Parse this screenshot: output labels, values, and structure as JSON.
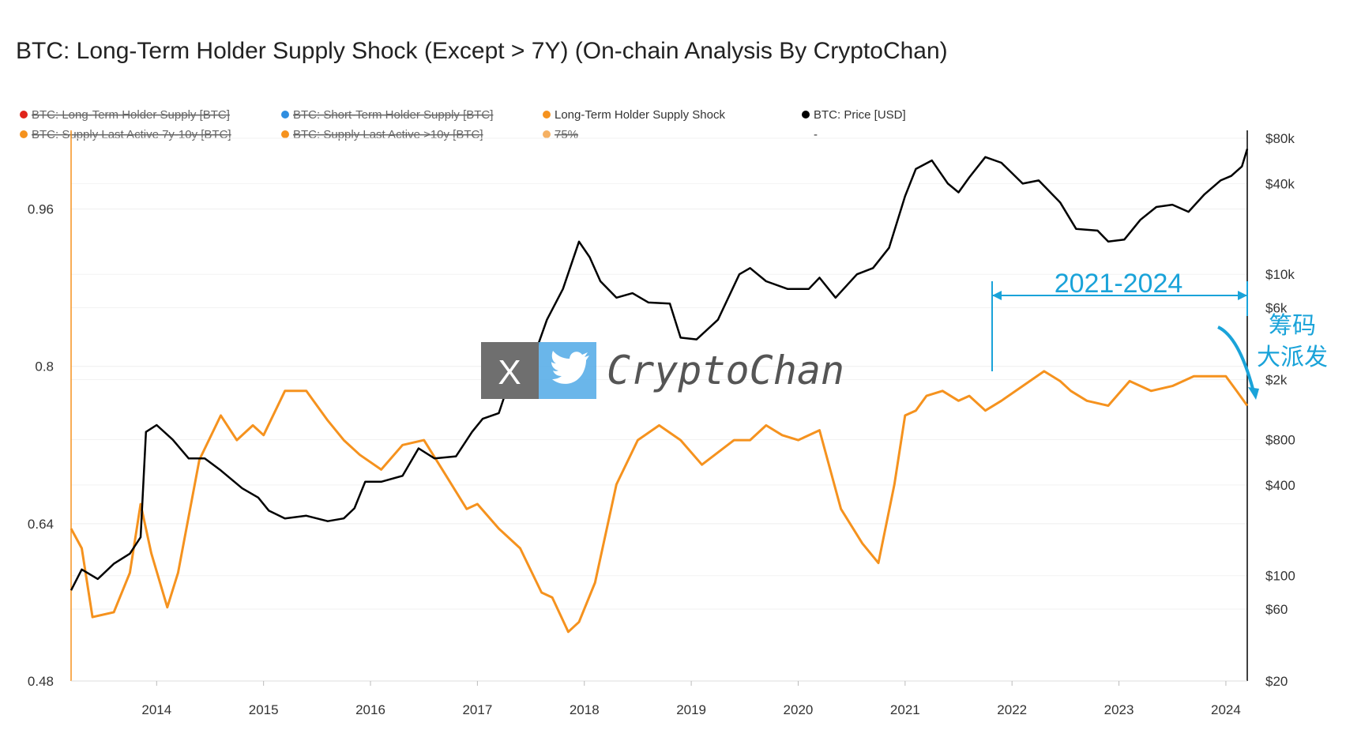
{
  "chart_data": {
    "type": "line",
    "title": "BTC: Long-Term Holder Supply Shock (Except > 7Y) (On-chain Analysis By CryptoChan)",
    "legend": [
      {
        "label": "BTC: Long-Term Holder Supply [BTC]",
        "color": "#e0241b",
        "disabled": true
      },
      {
        "label": "BTC: Short-Term Holder Supply [BTC]",
        "color": "#2f8ee0",
        "disabled": true
      },
      {
        "label": "Long-Term Holder Supply Shock",
        "color": "#f5921e",
        "disabled": false
      },
      {
        "label": "BTC: Price [USD]",
        "color": "#000000",
        "disabled": false
      },
      {
        "label": "BTC: Supply Last Active 7y-10y [BTC]",
        "color": "#f5921e",
        "disabled": true
      },
      {
        "label": "BTC: Supply Last Active >10y [BTC]",
        "color": "#f5921e",
        "disabled": true
      },
      {
        "label": "75%",
        "color": "#f5b062",
        "disabled": true
      },
      {
        "label": "-",
        "color": null,
        "disabled": false
      }
    ],
    "x_ticks": [
      "2014",
      "2015",
      "2016",
      "2017",
      "2018",
      "2019",
      "2020",
      "2021",
      "2022",
      "2023",
      "2024"
    ],
    "x_range": [
      2013.2,
      2024.2
    ],
    "y_left": {
      "ticks": [
        0.96,
        0.8,
        0.64,
        0.48
      ],
      "tick_labels": [
        "0.96",
        "0.8",
        "0.64",
        "0.48"
      ],
      "range": [
        0.48,
        1.04
      ]
    },
    "y_right": {
      "scale": "log",
      "ticks": [
        80000,
        40000,
        10000,
        6000,
        2000,
        800,
        400,
        100,
        60,
        20
      ],
      "tick_labels": [
        "$80k",
        "$40k",
        "$10k",
        "$6k",
        "$2k",
        "$800",
        "$400",
        "$100",
        "$60",
        "$20"
      ],
      "range": [
        20,
        80000
      ]
    },
    "series": [
      {
        "name": "Long-Term Holder Supply Shock",
        "axis": "left",
        "color": "#f5921e",
        "x": [
          2013.2,
          2013.3,
          2013.4,
          2013.6,
          2013.75,
          2013.85,
          2013.95,
          2014.1,
          2014.2,
          2014.4,
          2014.6,
          2014.75,
          2014.9,
          2015.0,
          2015.2,
          2015.4,
          2015.6,
          2015.75,
          2015.9,
          2016.1,
          2016.3,
          2016.5,
          2016.7,
          2016.9,
          2017.0,
          2017.2,
          2017.4,
          2017.6,
          2017.7,
          2017.85,
          2017.95,
          2018.1,
          2018.3,
          2018.5,
          2018.7,
          2018.9,
          2019.1,
          2019.4,
          2019.55,
          2019.7,
          2019.85,
          2020.0,
          2020.2,
          2020.4,
          2020.6,
          2020.75,
          2020.9,
          2021.0,
          2021.1,
          2021.2,
          2021.35,
          2021.5,
          2021.6,
          2021.75,
          2021.9,
          2022.1,
          2022.3,
          2022.45,
          2022.55,
          2022.7,
          2022.9,
          2023.1,
          2023.3,
          2023.5,
          2023.7,
          2023.9,
          2024.0,
          2024.1,
          2024.2
        ],
        "y": [
          0.635,
          0.615,
          0.545,
          0.55,
          0.59,
          0.66,
          0.61,
          0.555,
          0.59,
          0.705,
          0.75,
          0.725,
          0.74,
          0.73,
          0.775,
          0.775,
          0.745,
          0.725,
          0.71,
          0.695,
          0.72,
          0.725,
          0.69,
          0.655,
          0.66,
          0.635,
          0.615,
          0.57,
          0.565,
          0.53,
          0.54,
          0.58,
          0.68,
          0.725,
          0.74,
          0.725,
          0.7,
          0.725,
          0.725,
          0.74,
          0.73,
          0.725,
          0.735,
          0.655,
          0.62,
          0.6,
          0.68,
          0.75,
          0.755,
          0.77,
          0.775,
          0.765,
          0.77,
          0.755,
          0.765,
          0.78,
          0.795,
          0.785,
          0.775,
          0.765,
          0.76,
          0.785,
          0.775,
          0.78,
          0.79,
          0.79,
          0.79,
          0.775,
          0.76
        ]
      },
      {
        "name": "BTC: Price [USD]",
        "axis": "right",
        "color": "#000000",
        "x": [
          2013.2,
          2013.3,
          2013.45,
          2013.6,
          2013.75,
          2013.85,
          2013.9,
          2014.0,
          2014.15,
          2014.3,
          2014.45,
          2014.6,
          2014.8,
          2014.95,
          2015.05,
          2015.2,
          2015.4,
          2015.6,
          2015.75,
          2015.85,
          2015.95,
          2016.1,
          2016.3,
          2016.45,
          2016.6,
          2016.8,
          2016.95,
          2017.05,
          2017.2,
          2017.35,
          2017.5,
          2017.65,
          2017.8,
          2017.95,
          2018.05,
          2018.15,
          2018.3,
          2018.45,
          2018.6,
          2018.8,
          2018.9,
          2019.05,
          2019.25,
          2019.45,
          2019.55,
          2019.7,
          2019.9,
          2020.1,
          2020.2,
          2020.35,
          2020.55,
          2020.7,
          2020.85,
          2021.0,
          2021.1,
          2021.25,
          2021.4,
          2021.5,
          2021.6,
          2021.75,
          2021.9,
          2022.0,
          2022.1,
          2022.25,
          2022.45,
          2022.6,
          2022.8,
          2022.9,
          2023.05,
          2023.2,
          2023.35,
          2023.5,
          2023.65,
          2023.8,
          2023.95,
          2024.05,
          2024.15,
          2024.2
        ],
        "y": [
          80,
          110,
          95,
          120,
          140,
          180,
          900,
          1000,
          800,
          600,
          600,
          500,
          380,
          330,
          270,
          240,
          250,
          230,
          240,
          280,
          420,
          420,
          460,
          700,
          600,
          620,
          900,
          1100,
          1200,
          2500,
          2500,
          5000,
          8000,
          16500,
          13000,
          9000,
          7000,
          7500,
          6500,
          6400,
          3800,
          3700,
          5000,
          10000,
          11000,
          9000,
          8000,
          8000,
          9500,
          7000,
          10000,
          11000,
          15000,
          33000,
          50000,
          57000,
          40000,
          35000,
          44000,
          60000,
          55000,
          47000,
          40000,
          42000,
          30000,
          20000,
          19500,
          16500,
          17000,
          23000,
          28000,
          29000,
          26000,
          34000,
          42000,
          45000,
          52000,
          68000
        ]
      }
    ]
  },
  "annotations": {
    "period_label": "2021-2024",
    "chips_label_line1": "筹码",
    "chips_label_line2": "大派发"
  },
  "watermarks": {
    "x_logo": "X",
    "brand": "CryptoChan"
  }
}
